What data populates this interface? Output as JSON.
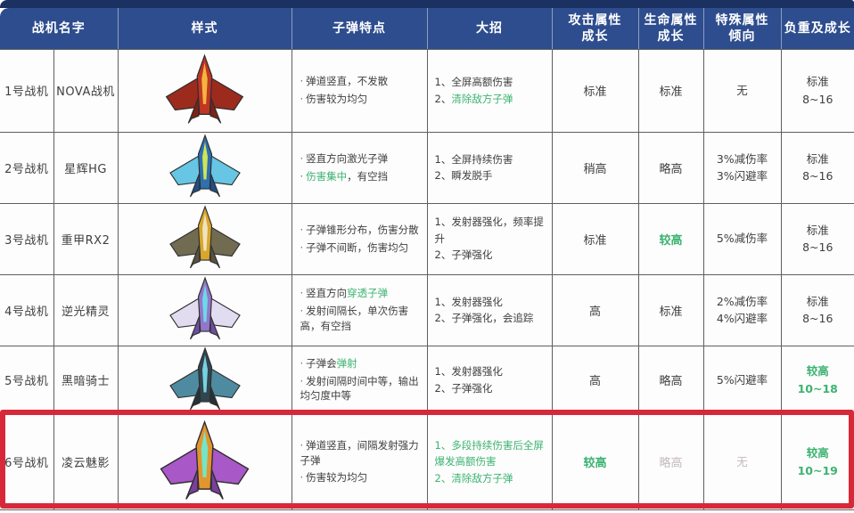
{
  "bullet_marker": "·",
  "colors": {
    "header_bg": "#2e4d8e",
    "header_top_bar": "#1b3161",
    "grid_line": "#5f5f5f",
    "green_accent": "#3cb371",
    "faded_text": "#c3b9b9",
    "highlight_border": "#d7283a"
  },
  "header": {
    "cols": [
      "战机名字",
      "样式",
      "子弹特点",
      "大招",
      "攻击属性\n成长",
      "生命属性\n成长",
      "特殊属性\n倾向",
      "负重及成长"
    ]
  },
  "rows": [
    {
      "id": "1号战机",
      "name": "NOVA战机",
      "plane": {
        "label": "nova-red-jet",
        "body": "#c03524",
        "wing": "#9c2b1d",
        "core": "#f2b63c",
        "tail": "#7e2115"
      },
      "bullet_traits": [
        [
          {
            "t": "弹道竖直，不发散",
            "s": "n"
          }
        ],
        [
          {
            "t": "伤害较为均匀",
            "s": "n"
          }
        ]
      ],
      "ultimate": [
        [
          {
            "t": "1、全屏高额伤害",
            "s": "n"
          }
        ],
        [
          {
            "t": "2、",
            "s": "n"
          },
          {
            "t": "清除敌方子弹",
            "s": "g"
          }
        ]
      ],
      "attack_growth": {
        "t": "标准",
        "s": "n"
      },
      "life_growth": {
        "t": "标准",
        "s": "n"
      },
      "special": [
        {
          "t": "无",
          "s": "n"
        }
      ],
      "load_growth": [
        {
          "t": "标准",
          "s": "n"
        },
        {
          "t": "8~16",
          "s": "n"
        }
      ]
    },
    {
      "id": "2号战机",
      "name": "星辉HG",
      "plane": {
        "label": "starlight-blue-jet",
        "body": "#2e6fae",
        "wing": "#66c6e4",
        "core": "#cde65a",
        "tail": "#1f4f86"
      },
      "bullet_traits": [
        [
          {
            "t": "竖直方向激光子弹",
            "s": "n"
          }
        ],
        [
          {
            "t": "伤害集中",
            "s": "g"
          },
          {
            "t": "，有空挡",
            "s": "n"
          }
        ]
      ],
      "ultimate": [
        [
          {
            "t": "1、全屏持续伤害",
            "s": "n"
          }
        ],
        [
          {
            "t": "2、瞬发脱手",
            "s": "n"
          }
        ]
      ],
      "attack_growth": {
        "t": "稍高",
        "s": "n"
      },
      "life_growth": {
        "t": "略高",
        "s": "n"
      },
      "special": [
        {
          "t": "3%减伤率",
          "s": "n"
        },
        {
          "t": "3%闪避率",
          "s": "n"
        }
      ],
      "load_growth": [
        {
          "t": "标准",
          "s": "n"
        },
        {
          "t": "8~16",
          "s": "n"
        }
      ]
    },
    {
      "id": "3号战机",
      "name": "重甲RX2",
      "plane": {
        "label": "heavy-armor-yellow-jet",
        "body": "#d8a62c",
        "wing": "#716b52",
        "core": "#efe3c0",
        "tail": "#57523e"
      },
      "bullet_traits": [
        [
          {
            "t": "子弹锥形分布，伤害分散",
            "s": "n"
          }
        ],
        [
          {
            "t": "子弹不间断，伤害均匀",
            "s": "n"
          }
        ]
      ],
      "ultimate": [
        [
          {
            "t": "1、发射器强化，频率提升",
            "s": "n"
          }
        ],
        [
          {
            "t": "2、子弹强化",
            "s": "n"
          }
        ]
      ],
      "attack_growth": {
        "t": "标准",
        "s": "n"
      },
      "life_growth": {
        "t": "较高",
        "s": "g"
      },
      "special": [
        {
          "t": "5%减伤率",
          "s": "n"
        }
      ],
      "load_growth": [
        {
          "t": "标准",
          "s": "n"
        },
        {
          "t": "8~16",
          "s": "n"
        }
      ]
    },
    {
      "id": "4号战机",
      "name": "逆光精灵",
      "plane": {
        "label": "backlight-sprite-purple-jet",
        "body": "#9277c8",
        "wing": "#e2dcf0",
        "core": "#6fd8e8",
        "tail": "#6a4fa0"
      },
      "bullet_traits": [
        [
          {
            "t": "竖直方向",
            "s": "n"
          },
          {
            "t": "穿透子弹",
            "s": "g"
          }
        ],
        [
          {
            "t": "发射间隔长，单次伤害高，有空挡",
            "s": "n"
          }
        ]
      ],
      "ultimate": [
        [
          {
            "t": "1、发射器强化",
            "s": "n"
          }
        ],
        [
          {
            "t": "2、子弹强化，会追踪",
            "s": "n"
          }
        ]
      ],
      "attack_growth": {
        "t": "高",
        "s": "n"
      },
      "life_growth": {
        "t": "标准",
        "s": "n"
      },
      "special": [
        {
          "t": "2%减伤率",
          "s": "n"
        },
        {
          "t": "4%闪避率",
          "s": "n"
        }
      ],
      "load_growth": [
        {
          "t": "标准",
          "s": "n"
        },
        {
          "t": "8~16",
          "s": "n"
        }
      ]
    },
    {
      "id": "5号战机",
      "name": "黑暗骑士",
      "plane": {
        "label": "dark-knight-jet",
        "body": "#31454f",
        "wing": "#4f8ba0",
        "core": "#79d2e2",
        "tail": "#243239"
      },
      "bullet_traits": [
        [
          {
            "t": "子弹会",
            "s": "n"
          },
          {
            "t": "弹射",
            "s": "g"
          }
        ],
        [
          {
            "t": "发射间隔时间中等，输出均匀度中等",
            "s": "n"
          }
        ]
      ],
      "ultimate": [
        [
          {
            "t": "1、发射器强化",
            "s": "n"
          }
        ],
        [
          {
            "t": "2、子弹强化",
            "s": "n"
          }
        ]
      ],
      "attack_growth": {
        "t": "高",
        "s": "n"
      },
      "life_growth": {
        "t": "略高",
        "s": "n"
      },
      "special": [
        {
          "t": "5%闪避率",
          "s": "n"
        }
      ],
      "load_growth": [
        {
          "t": "较高",
          "s": "g"
        },
        {
          "t": "10~18",
          "s": "g"
        }
      ]
    },
    {
      "id": "6号战机",
      "name": "凌云魅影",
      "plane": {
        "label": "lingyun-phantom-jet",
        "body": "#e2952f",
        "wing": "#a958c8",
        "core": "#74e6c8",
        "tail": "#7a3f9e"
      },
      "bullet_traits": [
        [
          {
            "t": "弹道竖直，间隔发射强力子弹",
            "s": "n"
          }
        ],
        [
          {
            "t": "伤害较为均匀",
            "s": "n"
          }
        ]
      ],
      "ultimate": [
        [
          {
            "t": "1、多段持续伤害后全屏爆发高额伤害",
            "s": "g"
          }
        ],
        [
          {
            "t": "2、清除敌方子弹",
            "s": "g"
          }
        ]
      ],
      "attack_growth": {
        "t": "较高",
        "s": "g"
      },
      "life_growth": {
        "t": "略高",
        "s": "f"
      },
      "special": [
        {
          "t": "无",
          "s": "f"
        }
      ],
      "load_growth": [
        {
          "t": "较高",
          "s": "g"
        },
        {
          "t": "10~19",
          "s": "g"
        }
      ]
    }
  ]
}
